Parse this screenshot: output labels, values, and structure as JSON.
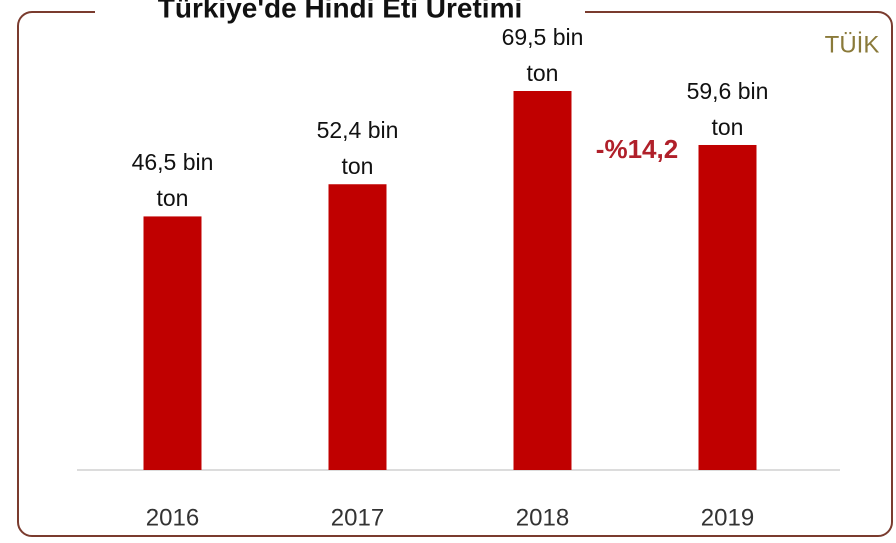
{
  "chart_data": {
    "type": "bar",
    "title": "Türkiye'de Hindi Eti Üretimi",
    "source": "TÜİK",
    "categories": [
      "2016",
      "2017",
      "2018",
      "2019"
    ],
    "values": [
      46.5,
      52.4,
      69.5,
      59.6
    ],
    "value_labels": [
      "46,5 bin ton",
      "52,4 bin ton",
      "69,5 bin ton",
      "59,6 bin ton"
    ],
    "color": "#c00000",
    "annotation": "-%14,2",
    "annotation_color": "#b0202a"
  }
}
